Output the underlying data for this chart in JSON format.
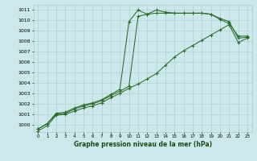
{
  "xlabel": "Graphe pression niveau de la mer (hPa)",
  "ylim": [
    999.3,
    1011.5
  ],
  "xlim": [
    -0.5,
    23.5
  ],
  "yticks": [
    1000,
    1001,
    1002,
    1003,
    1004,
    1005,
    1006,
    1007,
    1008,
    1009,
    1010,
    1011
  ],
  "xticks": [
    0,
    1,
    2,
    3,
    4,
    5,
    6,
    7,
    8,
    9,
    10,
    11,
    12,
    13,
    14,
    15,
    16,
    17,
    18,
    19,
    20,
    21,
    22,
    23
  ],
  "bg_color": "#cce8ea",
  "grid_color": "#b0d0d3",
  "line_color": "#2d6b2d",
  "line1_x": [
    0,
    1,
    2,
    3,
    4,
    5,
    6,
    7,
    8,
    9,
    10,
    11,
    12,
    13,
    14,
    15,
    16,
    17,
    18,
    19,
    20,
    21,
    22,
    23
  ],
  "line1_y": [
    999.6,
    1000.1,
    1001.1,
    1001.2,
    1001.6,
    1001.9,
    1002.1,
    1002.4,
    1002.9,
    1003.4,
    1009.9,
    1011.0,
    1010.6,
    1011.0,
    1010.8,
    1010.7,
    1010.7,
    1010.7,
    1010.7,
    1010.6,
    1010.1,
    1009.7,
    1008.5,
    1008.5
  ],
  "line2_x": [
    0,
    1,
    2,
    3,
    4,
    5,
    6,
    7,
    8,
    9,
    10,
    11,
    12,
    13,
    14,
    15,
    16,
    17,
    18,
    19,
    20,
    21,
    22,
    23
  ],
  "line2_y": [
    999.6,
    1000.1,
    1001.0,
    1001.1,
    1001.5,
    1001.8,
    1002.0,
    1002.3,
    1002.8,
    1003.2,
    1003.7,
    1010.4,
    1010.6,
    1010.7,
    1010.7,
    1010.7,
    1010.7,
    1010.7,
    1010.7,
    1010.6,
    1010.2,
    1009.9,
    1008.3,
    1008.4
  ],
  "line3_x": [
    0,
    1,
    2,
    3,
    4,
    5,
    6,
    7,
    8,
    9,
    10,
    11,
    12,
    13,
    14,
    15,
    16,
    17,
    18,
    19,
    20,
    21,
    22,
    23
  ],
  "line3_y": [
    999.4,
    999.9,
    1000.9,
    1001.0,
    1001.3,
    1001.6,
    1001.8,
    1002.1,
    1002.6,
    1003.0,
    1003.5,
    1003.9,
    1004.4,
    1004.9,
    1005.7,
    1006.5,
    1007.1,
    1007.6,
    1008.1,
    1008.6,
    1009.1,
    1009.6,
    1007.9,
    1008.3
  ]
}
